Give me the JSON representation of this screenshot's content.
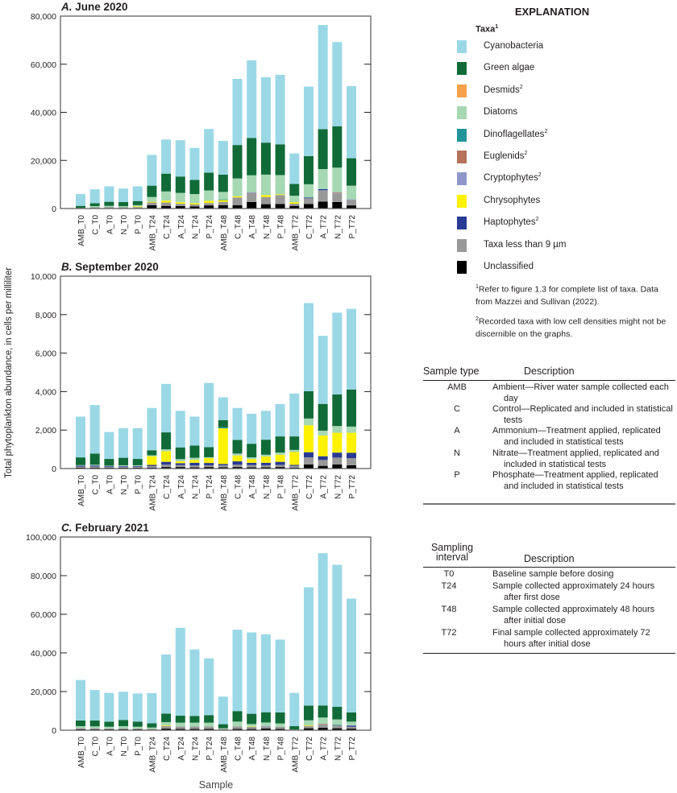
{
  "figure": {
    "y_axis_label": "Total phytoplankton abundance, in cells per milliliter",
    "x_axis_label": "Sample"
  },
  "legend": {
    "title": "EXPLANATION",
    "taxa_heading": "Taxa",
    "taxa_heading_sup": "1",
    "items": [
      {
        "label": "Cyanobacteria",
        "sup": "",
        "color": "#9AD8E6"
      },
      {
        "label": "Green algae",
        "sup": "",
        "color": "#116B38"
      },
      {
        "label": "Desmids",
        "sup": "2",
        "color": "#F9A04A"
      },
      {
        "label": "Diatoms",
        "sup": "",
        "color": "#A5D8B3"
      },
      {
        "label": "Dinoflagellates",
        "sup": "2",
        "color": "#21949A"
      },
      {
        "label": "Euglenids",
        "sup": "2",
        "color": "#B4735A"
      },
      {
        "label": "Cryptophytes",
        "sup": "2",
        "color": "#8E97C8"
      },
      {
        "label": "Chrysophytes",
        "sup": "",
        "color": "#FFF200"
      },
      {
        "label": "Haptophytes",
        "sup": "2",
        "color": "#283A93"
      },
      {
        "label": "Taxa less than 9 µm",
        "sup": "",
        "color": "#999999"
      },
      {
        "label": "Unclassified",
        "sup": "",
        "color": "#000000"
      }
    ],
    "footnote1_sup": "1",
    "footnote1": "Refer to figure 1.3 for complete list of taxa. Data from Mazzei and Sullivan (2022).",
    "footnote2_sup": "2",
    "footnote2": "Recorded taxa with low cell densities might not be discernible on the graphs."
  },
  "sample_type_table": {
    "col1": "Sample type",
    "col2": "Description",
    "rows": [
      {
        "code": "AMB",
        "desc": "Ambient—River water sample collected each day"
      },
      {
        "code": "C",
        "desc": "Control—Replicated and included in statistical tests"
      },
      {
        "code": "A",
        "desc": "Ammonium—Treatment applied, replicated and included in statistical tests"
      },
      {
        "code": "N",
        "desc": "Nitrate—Treatment applied, replicated and included in statistical tests"
      },
      {
        "code": "P",
        "desc": "Phosphate—Treatment applied, replicated and included in statistical tests"
      }
    ]
  },
  "interval_table": {
    "col1": "Sampling interval",
    "col2": "Description",
    "rows": [
      {
        "code": "T0",
        "desc": "Baseline sample before dosing"
      },
      {
        "code": "T24",
        "desc": "Sample collected approximately 24 hours after first dose"
      },
      {
        "code": "T48",
        "desc": "Sample collected approximately 48 hours after initial dose"
      },
      {
        "code": "T72",
        "desc": "Final sample collected approximately 72 hours after initial dose"
      }
    ]
  },
  "chart_data": [
    {
      "type": "bar",
      "stacked": true,
      "panel_letter": "A.",
      "title": "June 2020",
      "ylim": [
        0,
        80000
      ],
      "yticks": [
        0,
        20000,
        40000,
        60000,
        80000
      ],
      "categories": [
        "AMB_T0",
        "C_T0",
        "A_T0",
        "N_T0",
        "P_T0",
        "AMB_T24",
        "C_T24",
        "A_T24",
        "N_T24",
        "P_T24",
        "AMB_T48",
        "C_T48",
        "A_T48",
        "N_T48",
        "P_T48",
        "AMB_T72",
        "C_T72",
        "A_T72",
        "N_T72",
        "P_T72"
      ],
      "series": [
        {
          "name": "Unclassified",
          "values": [
            100,
            200,
            200,
            200,
            200,
            1400,
            1100,
            1000,
            900,
            1300,
            1400,
            1400,
            2700,
            1800,
            1900,
            1100,
            1900,
            2900,
            2700,
            1300
          ]
        },
        {
          "name": "Taxa less than 9 µm",
          "values": [
            200,
            300,
            400,
            300,
            400,
            1100,
            1400,
            1000,
            800,
            1000,
            1400,
            3200,
            3800,
            3000,
            3700,
            900,
            2400,
            4700,
            3600,
            2200
          ]
        },
        {
          "name": "Haptophytes",
          "values": [
            0,
            0,
            0,
            0,
            0,
            0,
            0,
            0,
            0,
            0,
            0,
            0,
            0,
            0,
            0,
            0,
            300,
            500,
            0,
            0
          ]
        },
        {
          "name": "Chrysophytes",
          "values": [
            0,
            0,
            0,
            0,
            300,
            300,
            800,
            600,
            500,
            900,
            700,
            500,
            0,
            800,
            300,
            600,
            0,
            0,
            0,
            0
          ]
        },
        {
          "name": "Cryptophytes",
          "values": [
            0,
            0,
            0,
            0,
            0,
            0,
            0,
            0,
            0,
            0,
            0,
            0,
            300,
            0,
            0,
            0,
            0,
            0,
            200,
            300
          ]
        },
        {
          "name": "Euglenids",
          "values": [
            0,
            0,
            0,
            0,
            0,
            0,
            0,
            0,
            0,
            0,
            0,
            0,
            0,
            0,
            0,
            0,
            0,
            0,
            300,
            0
          ]
        },
        {
          "name": "Dinoflagellates",
          "values": [
            0,
            0,
            0,
            0,
            0,
            0,
            0,
            0,
            0,
            0,
            300,
            0,
            0,
            0,
            0,
            0,
            0,
            0,
            0,
            0
          ]
        },
        {
          "name": "Diatoms",
          "values": [
            0,
            500,
            500,
            500,
            500,
            2000,
            3800,
            3900,
            3800,
            4300,
            3100,
            7400,
            7000,
            8500,
            8000,
            2700,
            5500,
            8300,
            10200,
            5700
          ]
        },
        {
          "name": "Desmids",
          "values": [
            0,
            0,
            0,
            0,
            0,
            0,
            0,
            0,
            0,
            0,
            0,
            0,
            0,
            0,
            0,
            0,
            0,
            0,
            0,
            0
          ]
        },
        {
          "name": "Green algae",
          "values": [
            800,
            1200,
            1700,
            1700,
            1700,
            4700,
            7400,
            6800,
            5900,
            7400,
            7200,
            13900,
            15500,
            13300,
            12800,
            4900,
            11700,
            16600,
            17200,
            11400
          ]
        },
        {
          "name": "Cyanobacteria",
          "values": [
            4900,
            5800,
            6400,
            5600,
            6100,
            12800,
            14200,
            15100,
            13300,
            18200,
            14000,
            27500,
            32300,
            27200,
            28900,
            12700,
            28900,
            43300,
            35000,
            30000
          ]
        }
      ]
    },
    {
      "type": "bar",
      "stacked": true,
      "panel_letter": "B.",
      "title": "September 2020",
      "ylim": [
        0,
        10000
      ],
      "yticks": [
        0,
        2000,
        4000,
        6000,
        8000,
        10000
      ],
      "categories": [
        "AMB_T0",
        "C_T0",
        "A_T0",
        "N_T0",
        "P_T0",
        "AMB_T24",
        "C_T24",
        "A_T24",
        "N_T24",
        "P_T24",
        "AMB_T48",
        "C_T48",
        "A_T48",
        "N_T48",
        "P_T48",
        "AMB_T72",
        "C_T72",
        "A_T72",
        "N_T72",
        "P_T72"
      ],
      "series": [
        {
          "name": "Unclassified",
          "values": [
            50,
            50,
            40,
            40,
            40,
            50,
            80,
            80,
            60,
            80,
            70,
            80,
            70,
            70,
            80,
            50,
            210,
            140,
            210,
            170
          ]
        },
        {
          "name": "Taxa less than 9 µm",
          "values": [
            50,
            60,
            40,
            40,
            50,
            80,
            120,
            100,
            100,
            90,
            100,
            120,
            110,
            100,
            110,
            90,
            370,
            305,
            360,
            370
          ]
        },
        {
          "name": "Haptophytes",
          "values": [
            50,
            50,
            40,
            40,
            40,
            60,
            150,
            100,
            140,
            120,
            70,
            175,
            120,
            130,
            160,
            50,
            270,
            195,
            260,
            280
          ]
        },
        {
          "name": "Chrysophytes",
          "values": [
            0,
            0,
            0,
            0,
            0,
            450,
            550,
            95,
            150,
            250,
            1850,
            305,
            190,
            325,
            370,
            670,
            1400,
            1080,
            1030,
            1040
          ]
        },
        {
          "name": "Cryptophytes",
          "values": [
            0,
            0,
            0,
            0,
            0,
            0,
            0,
            0,
            0,
            0,
            0,
            0,
            0,
            0,
            0,
            0,
            0,
            0,
            0,
            0
          ]
        },
        {
          "name": "Euglenids",
          "values": [
            0,
            0,
            0,
            0,
            0,
            0,
            0,
            0,
            0,
            0,
            0,
            0,
            0,
            0,
            0,
            0,
            0,
            0,
            0,
            0
          ]
        },
        {
          "name": "Dinoflagellates",
          "values": [
            0,
            0,
            0,
            0,
            0,
            0,
            0,
            0,
            0,
            0,
            60,
            0,
            0,
            0,
            0,
            0,
            0,
            0,
            0,
            0
          ]
        },
        {
          "name": "Diatoms",
          "values": [
            30,
            40,
            30,
            50,
            40,
            50,
            100,
            115,
            110,
            50,
            0,
            100,
            90,
            95,
            110,
            110,
            350,
            250,
            350,
            320
          ]
        },
        {
          "name": "Desmids",
          "values": [
            0,
            0,
            0,
            0,
            0,
            0,
            0,
            0,
            0,
            0,
            0,
            0,
            0,
            0,
            0,
            0,
            0,
            0,
            0,
            0
          ]
        },
        {
          "name": "Green algae",
          "values": [
            400,
            580,
            350,
            390,
            330,
            260,
            880,
            610,
            640,
            520,
            370,
            710,
            710,
            780,
            840,
            700,
            1420,
            1390,
            1640,
            1930
          ]
        },
        {
          "name": "Cyanobacteria",
          "values": [
            2120,
            2520,
            1400,
            1540,
            1600,
            2200,
            2520,
            1900,
            1500,
            3340,
            1180,
            1660,
            1560,
            1500,
            1680,
            2230,
            4580,
            3540,
            4250,
            4190
          ]
        }
      ]
    },
    {
      "type": "bar",
      "stacked": true,
      "panel_letter": "C.",
      "title": "February 2021",
      "ylim": [
        0,
        100000
      ],
      "yticks": [
        0,
        20000,
        40000,
        60000,
        80000,
        100000
      ],
      "categories": [
        "AMB_T0",
        "C_T0",
        "A_T0",
        "N_T0",
        "P_T0",
        "AMB_T24",
        "C_T24",
        "A_T24",
        "N_T24",
        "P_T24",
        "AMB_T48",
        "C_T48",
        "A_T48",
        "N_T48",
        "P_T48",
        "AMB_T72",
        "C_T72",
        "A_T72",
        "N_T72",
        "P_T72"
      ],
      "series": [
        {
          "name": "Unclassified",
          "values": [
            500,
            400,
            400,
            400,
            400,
            300,
            800,
            700,
            700,
            700,
            300,
            700,
            600,
            900,
            700,
            100,
            1000,
            1300,
            1000,
            800
          ]
        },
        {
          "name": "Taxa less than 9 µm",
          "values": [
            600,
            600,
            500,
            600,
            500,
            400,
            1400,
            1200,
            1200,
            1200,
            400,
            1300,
            1100,
            1000,
            1100,
            200,
            1200,
            1700,
            1650,
            1000
          ]
        },
        {
          "name": "Haptophytes",
          "values": [
            0,
            0,
            0,
            0,
            0,
            0,
            0,
            0,
            0,
            0,
            0,
            0,
            0,
            0,
            0,
            0,
            0,
            0,
            0,
            500
          ]
        },
        {
          "name": "Chrysophytes",
          "values": [
            0,
            0,
            0,
            0,
            0,
            0,
            300,
            0,
            0,
            0,
            0,
            0,
            200,
            0,
            0,
            0,
            300,
            0,
            0,
            0
          ]
        },
        {
          "name": "Cryptophytes",
          "values": [
            0,
            0,
            0,
            0,
            0,
            0,
            0,
            0,
            0,
            0,
            0,
            0,
            0,
            300,
            0,
            0,
            0,
            0,
            0,
            300
          ]
        },
        {
          "name": "Euglenids",
          "values": [
            0,
            0,
            0,
            0,
            0,
            0,
            0,
            0,
            0,
            0,
            0,
            0,
            0,
            0,
            0,
            0,
            0,
            300,
            0,
            0
          ]
        },
        {
          "name": "Dinoflagellates",
          "values": [
            0,
            0,
            0,
            0,
            0,
            0,
            0,
            0,
            0,
            0,
            0,
            0,
            0,
            0,
            0,
            0,
            0,
            0,
            300,
            0
          ]
        },
        {
          "name": "Diatoms",
          "values": [
            1000,
            1000,
            900,
            1100,
            900,
            700,
            1700,
            2000,
            2000,
            2000,
            300,
            2450,
            1300,
            1800,
            1700,
            100,
            2650,
            3250,
            2620,
            1850
          ]
        },
        {
          "name": "Desmids",
          "values": [
            0,
            0,
            0,
            0,
            0,
            0,
            0,
            0,
            0,
            0,
            0,
            0,
            0,
            0,
            0,
            0,
            0,
            0,
            0,
            0
          ]
        },
        {
          "name": "Green algae",
          "values": [
            2900,
            3000,
            2650,
            3200,
            2650,
            2200,
            4400,
            3600,
            3500,
            3900,
            2100,
            5450,
            5300,
            5300,
            5700,
            1700,
            7550,
            6250,
            6530,
            4750
          ]
        },
        {
          "name": "Cyanobacteria",
          "values": [
            21000,
            15800,
            14850,
            14600,
            14550,
            15600,
            30600,
            45500,
            34400,
            29400,
            14300,
            42100,
            42100,
            40300,
            37700,
            17200,
            61300,
            78800,
            73500,
            58900
          ]
        }
      ]
    }
  ]
}
